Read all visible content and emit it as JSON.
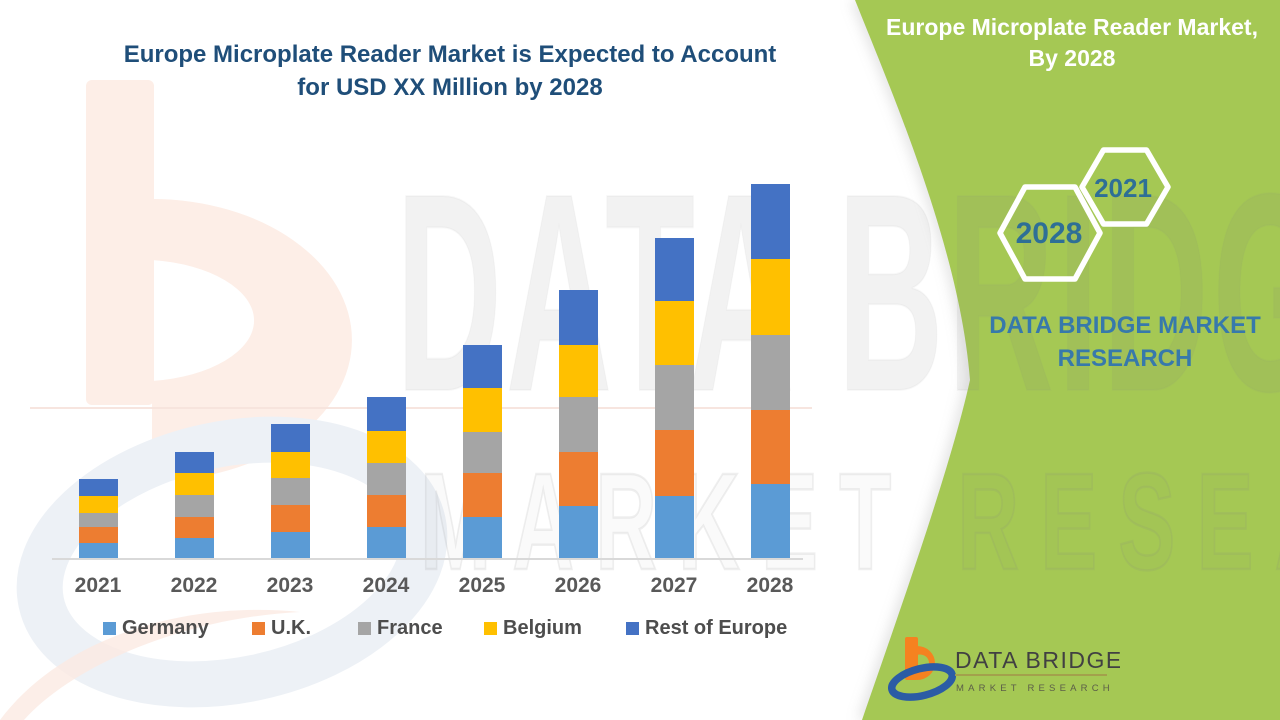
{
  "header": {
    "left_title_line1": "Europe Microplate Reader Market is Expected to Account",
    "left_title_line2": "for USD XX Million by 2028"
  },
  "right_panel": {
    "title_line1": "Europe Microplate Reader Market,",
    "title_line2": "By 2028",
    "hexagon_large_year": "2028",
    "hexagon_small_year": "2021",
    "brand_line1": "DATA BRIDGE MARKET",
    "brand_line2": "RESEARCH"
  },
  "watermark": {
    "line1": "DATA BRIDGE",
    "line2": "MARKET RESEARCH"
  },
  "logo": {
    "title": "DATA BRIDGE",
    "subtitle": "MARKET RESEARCH"
  },
  "colors": {
    "panel_green": "#a5c854",
    "title_blue": "#1f4e79",
    "brand_blue": "#3779ab",
    "hex_year_blue": "#2e6f96",
    "axis_label_gray": "#595959",
    "legend_text_gray": "#4d4d4d",
    "axis_line_gray": "#d9d9d9",
    "logo_orange": "#f58220",
    "logo_blue": "#2b5ca5"
  },
  "chart_data": {
    "type": "bar",
    "stacked": true,
    "title": "Europe Microplate Reader Market is Expected to Account for USD XX Million by 2028",
    "categories": [
      "2021",
      "2022",
      "2023",
      "2024",
      "2025",
      "2026",
      "2027",
      "2028"
    ],
    "series": [
      {
        "name": "Germany",
        "color": "#5B9BD5",
        "values": [
          15,
          20,
          26,
          31,
          41,
          52,
          62,
          74
        ]
      },
      {
        "name": "U.K.",
        "color": "#ED7D31",
        "values": [
          16,
          21,
          27,
          32,
          44,
          54,
          66,
          74
        ]
      },
      {
        "name": "France",
        "color": "#A5A5A5",
        "values": [
          14,
          22,
          27,
          32,
          41,
          55,
          65,
          75
        ]
      },
      {
        "name": "Belgium",
        "color": "#FFC000",
        "values": [
          17,
          22,
          26,
          32,
          44,
          52,
          64,
          76
        ]
      },
      {
        "name": "Rest of Europe",
        "color": "#4472C4",
        "values": [
          17,
          21,
          28,
          34,
          43,
          55,
          63,
          75
        ]
      }
    ],
    "totals": [
      79,
      106,
      134,
      161,
      213,
      268,
      320,
      374
    ],
    "xlabel": "",
    "ylabel": "",
    "value_axis_visible": false,
    "values_unit": "relative height units; actual USD values masked as 'XX Million'",
    "legend_position": "bottom",
    "gridlines": false
  }
}
